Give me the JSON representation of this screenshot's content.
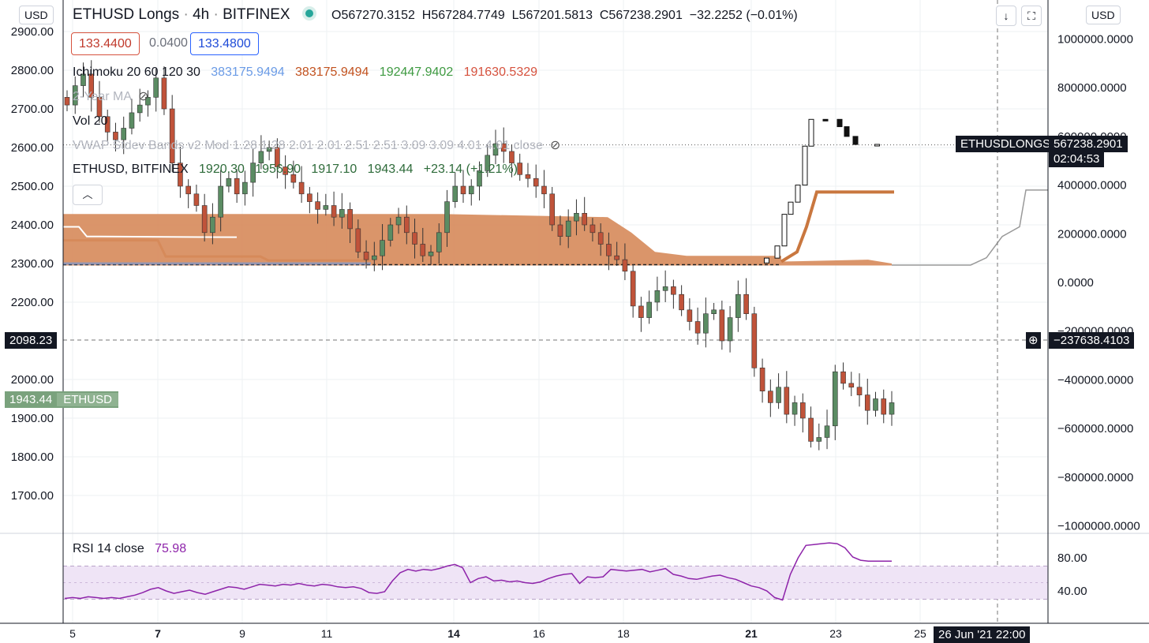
{
  "header": {
    "symbol_title": "ETHUSD Longs",
    "interval": "4h",
    "exchange": "BITFINEX",
    "ohlc": {
      "open": "O567270.3152",
      "high": "H567284.7749",
      "low": "L567201.5813",
      "close": "C567238.2901",
      "change": "−32.2252 (−0.01%)"
    },
    "bid": "133.4400",
    "spread": "0.0400",
    "ask": "133.4800",
    "left_scale_label": "USD",
    "right_scale_label": "USD",
    "download_icon": "arrow-down-icon",
    "fullscreen_icon": "fullscreen-icon"
  },
  "indicators": {
    "ichimoku": {
      "label": "Ichimoku 20 60 120 30",
      "v1": "383175.9494",
      "v2": "383175.9494",
      "v3": "192447.9402",
      "v4": "191630.5329",
      "colors": [
        "#6a9be6",
        "#c2521f",
        "#3e9a41",
        "#d6523e"
      ]
    },
    "ma_label": "2-Year MA",
    "vol_label": "Vol 20",
    "vwap_label": "VWAP Stdev Bands v2 Mod 1.28 1.28 2.01 2.01 2.51 2.51 3.09 3.09 4.01 4.01 close",
    "ethusd": {
      "label": "ETHUSD, BITFINEX",
      "open": "1920.30",
      "high": "1956.90",
      "low": "1917.10",
      "close": "1943.44",
      "change": "+23.14 (+1.21%)"
    },
    "rsi": {
      "label": "RSI 14 close",
      "value": "75.98",
      "color": "#8e24aa"
    },
    "hidden_icon": "eye-crossed-icon"
  },
  "price_tags": {
    "crosshair_price": "2098.23",
    "ethusd_price": "1943.44",
    "ethusd_name": "ETHUSD",
    "longs_name": "ETHUSDLONGS",
    "longs_value": "567238.2901",
    "longs_countdown": "02:04:53",
    "crosshair_right": "−237638.4103",
    "crosshair_date": "26 Jun '21   22:00"
  },
  "colors": {
    "up": "#5b8c63",
    "down": "#c0533a",
    "cloud": "#d68a5a",
    "rsi_band": "#efe4f6",
    "grid": "#eef0f3"
  },
  "chart_data": [
    {
      "type": "candlestick",
      "title": "ETHUSD, BITFINEX 4h",
      "x_ticks": [
        "5",
        "7",
        "9",
        "11",
        "14",
        "16",
        "18",
        "21",
        "23",
        "25"
      ],
      "y_ticks_left": [
        "2900.00",
        "2800.00",
        "2700.00",
        "2600.00",
        "2500.00",
        "2400.00",
        "2300.00",
        "2200.00",
        "2000.00",
        "1900.00",
        "1800.00",
        "1700.00"
      ],
      "ylim_left": [
        1620,
        2960
      ],
      "y_ticks_right": [
        "1000000.0000",
        "800000.0000",
        "600000.0000",
        "400000.0000",
        "200000.0000",
        "0.0000",
        "−200000.0000",
        "−400000.0000",
        "−600000.0000",
        "−800000.0000",
        "−1000000.0000"
      ],
      "ylim_right": [
        -1000000,
        1000000
      ],
      "ethusd_closes": [
        2710,
        2760,
        2790,
        2730,
        2680,
        2640,
        2620,
        2650,
        2690,
        2710,
        2730,
        2780,
        2700,
        2560,
        2500,
        2480,
        2450,
        2380,
        2420,
        2500,
        2520,
        2480,
        2510,
        2560,
        2590,
        2600,
        2550,
        2530,
        2510,
        2480,
        2460,
        2440,
        2450,
        2420,
        2440,
        2390,
        2330,
        2310,
        2320,
        2360,
        2400,
        2420,
        2380,
        2350,
        2320,
        2330,
        2380,
        2460,
        2500,
        2480,
        2500,
        2540,
        2580,
        2610,
        2590,
        2560,
        2530,
        2520,
        2500,
        2480,
        2400,
        2370,
        2410,
        2430,
        2400,
        2380,
        2350,
        2320,
        2310,
        2280,
        2190,
        2160,
        2200,
        2230,
        2240,
        2220,
        2180,
        2150,
        2120,
        2170,
        2180,
        2100,
        2160,
        2220,
        2170,
        2030,
        1970,
        1940,
        1980,
        1910,
        1940,
        1900,
        1840,
        1850,
        1880,
        2020,
        1990,
        1980,
        1960,
        1920,
        1950,
        1910,
        1940
      ],
      "longs_line": [
        {
          "x": 963,
          "v": 80000
        },
        {
          "x": 980,
          "v": 100000
        },
        {
          "x": 990,
          "v": 150000
        },
        {
          "x": 998,
          "v": 280000
        },
        {
          "x": 1006,
          "v": 330000
        },
        {
          "x": 1016,
          "v": 400000
        },
        {
          "x": 1024,
          "v": 560000
        },
        {
          "x": 1032,
          "v": 670000
        },
        {
          "x": 1060,
          "v": 670000
        },
        {
          "x": 1068,
          "v": 640000
        },
        {
          "x": 1078,
          "v": 600000
        },
        {
          "x": 1090,
          "v": 567000
        },
        {
          "x": 1133,
          "v": 567238
        }
      ]
    },
    {
      "type": "line",
      "title": "RSI 14 close",
      "y_ticks": [
        "80.00",
        "40.00"
      ],
      "ylim": [
        10,
        110
      ],
      "bands": [
        30,
        70
      ],
      "values": [
        31,
        32,
        31,
        33,
        32,
        31,
        32,
        31,
        33,
        35,
        38,
        42,
        44,
        40,
        37,
        39,
        41,
        38,
        36,
        39,
        42,
        45,
        44,
        42,
        45,
        48,
        47,
        46,
        48,
        47,
        49,
        47,
        46,
        48,
        47,
        45,
        44,
        45,
        43,
        38,
        37,
        39,
        52,
        62,
        66,
        64,
        66,
        65,
        67,
        70,
        72,
        68,
        50,
        55,
        57,
        52,
        53,
        51,
        52,
        50,
        49,
        51,
        55,
        58,
        60,
        61,
        49,
        57,
        56,
        57,
        66,
        65,
        64,
        65,
        66,
        63,
        65,
        67,
        60,
        58,
        55,
        54,
        56,
        58,
        59,
        56,
        54,
        50,
        46,
        44,
        40,
        32,
        29,
        60,
        80,
        95,
        96,
        97,
        98,
        97,
        92,
        81,
        77,
        76,
        76,
        76,
        76
      ]
    }
  ]
}
